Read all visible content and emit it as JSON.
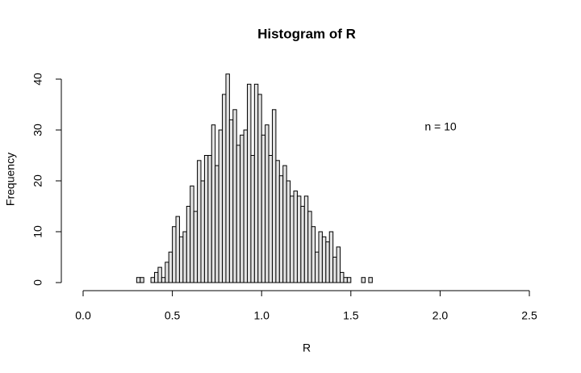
{
  "chart_data": {
    "type": "histogram",
    "title": "Histogram of R",
    "xlabel": "R",
    "ylabel": "Frequency",
    "annotation": "n = 10",
    "bins": [
      0.3,
      0.32,
      0.34,
      0.36,
      0.38,
      0.4,
      0.42,
      0.44,
      0.46,
      0.48,
      0.5,
      0.52,
      0.54,
      0.56,
      0.58,
      0.6,
      0.62,
      0.64,
      0.66,
      0.68,
      0.7,
      0.72,
      0.74,
      0.76,
      0.78,
      0.8,
      0.82,
      0.84,
      0.86,
      0.88,
      0.9,
      0.92,
      0.94,
      0.96,
      0.98,
      1.0,
      1.02,
      1.04,
      1.06,
      1.08,
      1.1,
      1.12,
      1.14,
      1.16,
      1.18,
      1.2,
      1.22,
      1.24,
      1.26,
      1.28,
      1.3,
      1.32,
      1.34,
      1.36,
      1.38,
      1.4,
      1.42,
      1.44,
      1.46,
      1.48,
      1.5,
      1.52,
      1.54,
      1.56,
      1.58,
      1.6,
      1.62
    ],
    "counts": [
      1,
      1,
      0,
      0,
      1,
      2,
      3,
      1,
      4,
      6,
      11,
      13,
      9,
      10,
      15,
      19,
      14,
      24,
      20,
      25,
      25,
      31,
      23,
      30,
      37,
      41,
      32,
      34,
      27,
      29,
      30,
      39,
      25,
      39,
      37,
      29,
      31,
      25,
      34,
      24,
      21,
      23,
      20,
      17,
      18,
      17,
      15,
      17,
      14,
      11,
      6,
      10,
      9,
      8,
      10,
      5,
      7,
      2,
      1,
      1,
      0,
      0,
      0,
      1,
      0,
      1
    ],
    "color": "#e3e3e3",
    "xlim": [
      0,
      2.5
    ],
    "xticks": [
      {
        "value": 0,
        "label": "0.0"
      },
      0.5,
      {
        "value": 1,
        "label": "1.0"
      },
      1.5,
      {
        "value": 2,
        "label": "2.0"
      },
      2.5
    ],
    "ylim": [
      0,
      40
    ],
    "yticks": [
      0,
      10,
      20,
      30,
      40
    ]
  }
}
